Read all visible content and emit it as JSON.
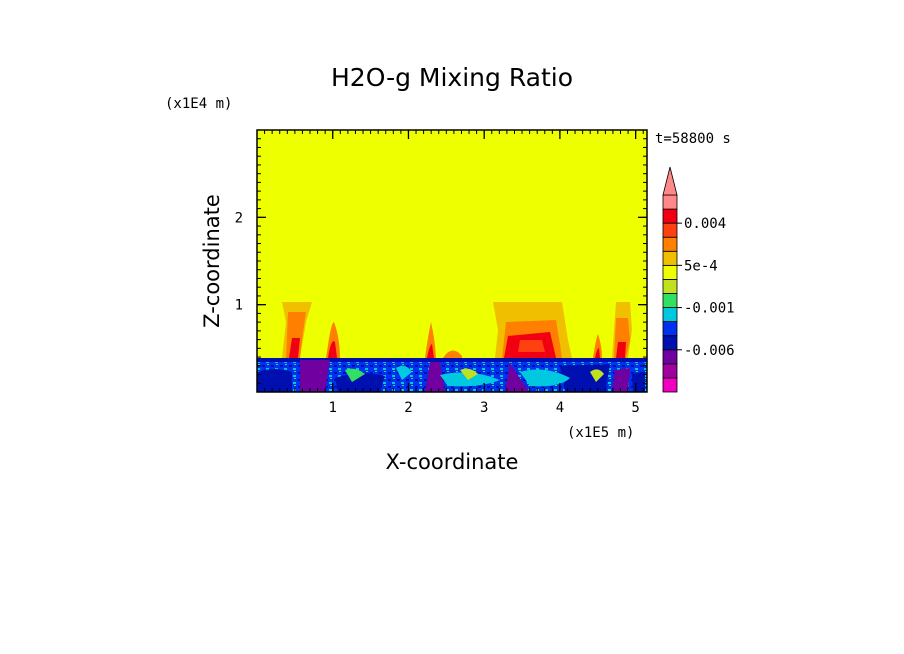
{
  "chart_data": {
    "type": "heatmap",
    "title": "H2O-g Mixing Ratio",
    "xlabel": "X-coordinate",
    "ylabel": "Z-coordinate",
    "x_scale_label": "(x1E5 m)",
    "y_scale_label": "(x1E4 m)",
    "time_label": "t=58800 s",
    "xlim": [
      0,
      5.15
    ],
    "ylim": [
      0,
      3.0
    ],
    "x_ticks": [
      1,
      2,
      3,
      4,
      5
    ],
    "y_ticks": [
      1,
      2
    ],
    "x_tick_labels": [
      "1",
      "2",
      "3",
      "4",
      "5"
    ],
    "y_tick_labels": [
      "1",
      "2"
    ],
    "background_level_color": "#eeff00",
    "colorbar": {
      "colors": [
        "#f000c0",
        "#a000a0",
        "#7000a0",
        "#0010b0",
        "#0030f0",
        "#00c8e0",
        "#30e060",
        "#c0e020",
        "#eeff00",
        "#f0c000",
        "#ff8000",
        "#ff4010",
        "#f00010",
        "#ff8888"
      ],
      "labels": [
        "0.004",
        "5e-4",
        "-0.001",
        "-0.006"
      ],
      "label_values": [
        0.004,
        0.0005,
        -0.001,
        -0.006
      ],
      "extend": "max"
    },
    "features": {
      "lower_layer_top_z": 0.38,
      "plumes_x": [
        0.6,
        1.0,
        2.28,
        2.55,
        3.45,
        4.48,
        4.8
      ]
    }
  }
}
